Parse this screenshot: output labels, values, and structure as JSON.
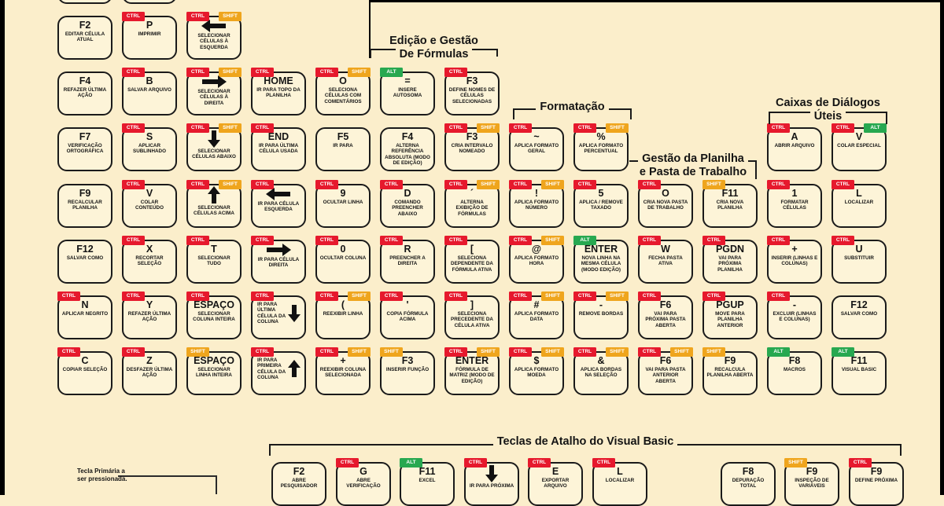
{
  "page": {
    "background": "#fbeecb",
    "key_fill": "#fdf4d8",
    "frame_color": "#000000"
  },
  "badges": {
    "ctrl": {
      "label": "CTRL",
      "color": "#e6192d"
    },
    "shift": {
      "label": "SHIFT",
      "color": "#efa51d"
    },
    "alt": {
      "label": "ALT",
      "color": "#27a850"
    }
  },
  "section_headers": [
    {
      "id": "edicao",
      "lines": [
        "Edição e Gestão",
        "De Fórmulas"
      ]
    },
    {
      "id": "formatacao",
      "lines": [
        "Formatação"
      ]
    },
    {
      "id": "gestao",
      "lines": [
        "Gestão da Planilha",
        "e Pasta de Trabalho"
      ]
    },
    {
      "id": "caixas",
      "lines": [
        "Caixas de Diálogos",
        "Úteis"
      ]
    },
    {
      "id": "vb",
      "lines": [
        "Teclas de Atalho do Visual Basic"
      ]
    }
  ],
  "legend": {
    "line1": "Tecla Primária a",
    "line2": "ser pressionada."
  },
  "keys": [
    {
      "grid": "main",
      "col": 1,
      "row": 0,
      "label": "",
      "desc": "",
      "mods": [],
      "partial": true
    },
    {
      "grid": "main",
      "col": 2,
      "row": 0,
      "label": "",
      "desc": "",
      "mods": [],
      "partial": true
    },
    {
      "grid": "main",
      "col": 1,
      "row": 1,
      "label": "F2",
      "desc": "EDITAR CÉLULA ATUAL",
      "mods": []
    },
    {
      "grid": "main",
      "col": 2,
      "row": 1,
      "label": "P",
      "desc": "IMPRIMIR",
      "mods": [
        "ctrl"
      ]
    },
    {
      "grid": "main",
      "col": 3,
      "row": 1,
      "label": "←",
      "desc": "SELECIONAR CÉLULAS À ESQUERDA",
      "mods": [
        "ctrl",
        "shift"
      ],
      "layout": "arrow-top"
    },
    {
      "grid": "main",
      "col": 1,
      "row": 2,
      "label": "F4",
      "desc": "REFAZER ÚLTIMA AÇÃO",
      "mods": []
    },
    {
      "grid": "main",
      "col": 2,
      "row": 2,
      "label": "B",
      "desc": "SALVAR ARQUIVO",
      "mods": [
        "ctrl"
      ]
    },
    {
      "grid": "main",
      "col": 3,
      "row": 2,
      "label": "→",
      "desc": "SELECIONAR CÉLULAS À DIREITA",
      "mods": [
        "ctrl",
        "shift"
      ],
      "layout": "arrow-top"
    },
    {
      "grid": "main",
      "col": 4,
      "row": 2,
      "label": "HOME",
      "desc": "IR PARA TOPO DA PLANILHA",
      "mods": [
        "ctrl"
      ]
    },
    {
      "grid": "main",
      "col": 5,
      "row": 2,
      "label": "O",
      "desc": "SELECIONA CÉLULAS COM COMENTÁRIOS",
      "mods": [
        "ctrl",
        "shift"
      ]
    },
    {
      "grid": "main",
      "col": 6,
      "row": 2,
      "label": "=",
      "desc": "INSERE AUTOSOMA",
      "mods": [
        "alt"
      ]
    },
    {
      "grid": "main",
      "col": 7,
      "row": 2,
      "label": "F3",
      "desc": "DEFINE NOMES DE CÉLULAS SELECIONADAS",
      "mods": [
        "ctrl"
      ]
    },
    {
      "grid": "main",
      "col": 1,
      "row": 3,
      "label": "F7",
      "desc": "VERIFICAÇÃO ORTOGRÁFICA",
      "mods": []
    },
    {
      "grid": "main",
      "col": 2,
      "row": 3,
      "label": "S",
      "desc": "APLICAR SUBLINHADO",
      "mods": [
        "ctrl"
      ]
    },
    {
      "grid": "main",
      "col": 3,
      "row": 3,
      "label": "↓",
      "desc": "SELECIONAR CÉLULAS ABAIXO",
      "mods": [
        "ctrl",
        "shift"
      ],
      "layout": "arrow-top"
    },
    {
      "grid": "main",
      "col": 4,
      "row": 3,
      "label": "END",
      "desc": "IR PARA ÚLTIMA CÉLULA USADA",
      "mods": [
        "ctrl"
      ]
    },
    {
      "grid": "main",
      "col": 5,
      "row": 3,
      "label": "F5",
      "desc": "IR PARA",
      "mods": []
    },
    {
      "grid": "main",
      "col": 6,
      "row": 3,
      "label": "F4",
      "desc": "ALTERNA REFERÊNCIA ABSOLUTA (MODO DE EDIÇÃO)",
      "mods": []
    },
    {
      "grid": "main",
      "col": 7,
      "row": 3,
      "label": "F3",
      "desc": "CRIA INTERVALO NOMEADO",
      "mods": [
        "ctrl",
        "shift"
      ]
    },
    {
      "grid": "main",
      "col": 8,
      "row": 3,
      "label": "~",
      "desc": "APLICA FORMATO GERAL",
      "mods": [
        "ctrl"
      ]
    },
    {
      "grid": "main",
      "col": 9,
      "row": 3,
      "label": "%",
      "desc": "APLICA FORMATO PERCENTUAL",
      "mods": [
        "ctrl",
        "shift"
      ]
    },
    {
      "grid": "main",
      "col": 12,
      "row": 3,
      "label": "A",
      "desc": "ABRIR ARQUIVO",
      "mods": [
        "ctrl"
      ]
    },
    {
      "grid": "main",
      "col": 13,
      "row": 3,
      "label": "V",
      "desc": "COLAR ESPECIAL",
      "mods": [
        "ctrl",
        "alt"
      ]
    },
    {
      "grid": "main",
      "col": 1,
      "row": 4,
      "label": "F9",
      "desc": "RECALCULAR PLANILHA",
      "mods": []
    },
    {
      "grid": "main",
      "col": 2,
      "row": 4,
      "label": "V",
      "desc": "COLAR CONTEÚDO",
      "mods": [
        "ctrl"
      ]
    },
    {
      "grid": "main",
      "col": 3,
      "row": 4,
      "label": "↑",
      "desc": "SELECIONAR CÉLULAS ACIMA",
      "mods": [
        "ctrl",
        "shift"
      ],
      "layout": "arrow-top"
    },
    {
      "grid": "main",
      "col": 4,
      "row": 4,
      "label": "←",
      "desc": "IR PARA CÉLULA ESQUERDA",
      "mods": [
        "ctrl"
      ],
      "layout": "arrow-top"
    },
    {
      "grid": "main",
      "col": 5,
      "row": 4,
      "label": "9",
      "desc": "OCULTAR LINHA",
      "mods": [
        "ctrl"
      ]
    },
    {
      "grid": "main",
      "col": 6,
      "row": 4,
      "label": "D",
      "desc": "COMANDO PREENCHER ABAIXO",
      "mods": [
        "ctrl"
      ]
    },
    {
      "grid": "main",
      "col": 7,
      "row": 4,
      "label": "´",
      "desc": "ALTERNA EXIBIÇÃO DE FÓRMULAS",
      "mods": [
        "ctrl",
        "shift"
      ]
    },
    {
      "grid": "main",
      "col": 8,
      "row": 4,
      "label": "!",
      "desc": "APLICA FORMATO NÚMERO",
      "mods": [
        "ctrl",
        "shift"
      ]
    },
    {
      "grid": "main",
      "col": 9,
      "row": 4,
      "label": "5",
      "desc": "APLICA / REMOVE TAXADO",
      "mods": [
        "ctrl"
      ]
    },
    {
      "grid": "main",
      "col": 10,
      "row": 4,
      "label": "O",
      "desc": "CRIA NOVA PASTA DE TRABALHO",
      "mods": [
        "ctrl"
      ]
    },
    {
      "grid": "main",
      "col": 11,
      "row": 4,
      "label": "F11",
      "desc": "CRIA NOVA PLANILHA",
      "mods": [
        "shift"
      ]
    },
    {
      "grid": "main",
      "col": 12,
      "row": 4,
      "label": "1",
      "desc": "FORMATAR CÉLULAS",
      "mods": [
        "ctrl"
      ]
    },
    {
      "grid": "main",
      "col": 13,
      "row": 4,
      "label": "L",
      "desc": "LOCALIZAR",
      "mods": [
        "ctrl"
      ]
    },
    {
      "grid": "main",
      "col": 1,
      "row": 5,
      "label": "F12",
      "desc": "SALVAR COMO",
      "mods": []
    },
    {
      "grid": "main",
      "col": 2,
      "row": 5,
      "label": "X",
      "desc": "RECORTAR SELEÇÃO",
      "mods": [
        "ctrl"
      ]
    },
    {
      "grid": "main",
      "col": 3,
      "row": 5,
      "label": "T",
      "desc": "SELECIONAR TUDO",
      "mods": [
        "ctrl"
      ]
    },
    {
      "grid": "main",
      "col": 4,
      "row": 5,
      "label": "→",
      "desc": "IR PARA CÉLULA DIREITA",
      "mods": [
        "ctrl"
      ],
      "layout": "arrow-top"
    },
    {
      "grid": "main",
      "col": 5,
      "row": 5,
      "label": "0",
      "desc": "OCULTAR COLUNA",
      "mods": [
        "ctrl"
      ]
    },
    {
      "grid": "main",
      "col": 6,
      "row": 5,
      "label": "R",
      "desc": "PREENCHER A DIREITA",
      "mods": [
        "ctrl"
      ]
    },
    {
      "grid": "main",
      "col": 7,
      "row": 5,
      "label": "[",
      "desc": "SELECIONA DEPENDENTE DA FÓRMULA ATIVA",
      "mods": [
        "ctrl"
      ]
    },
    {
      "grid": "main",
      "col": 8,
      "row": 5,
      "label": "@",
      "desc": "APLICA FORMATO HORA",
      "mods": [
        "ctrl",
        "shift"
      ]
    },
    {
      "grid": "main",
      "col": 9,
      "row": 5,
      "label": "ENTER",
      "desc": "NOVA LINHA NA MESMA CÉLULA (MODO EDIÇÃO)",
      "mods": [
        "alt"
      ]
    },
    {
      "grid": "main",
      "col": 10,
      "row": 5,
      "label": "W",
      "desc": "FECHA PASTA ATIVA",
      "mods": [
        "ctrl"
      ]
    },
    {
      "grid": "main",
      "col": 11,
      "row": 5,
      "label": "PGDN",
      "desc": "VAI PARA PRÓXIMA PLANILHA",
      "mods": [
        "ctrl"
      ]
    },
    {
      "grid": "main",
      "col": 12,
      "row": 5,
      "label": "+",
      "desc": "INSERIR (LINHAS E COLUNAS)",
      "mods": [
        "ctrl"
      ]
    },
    {
      "grid": "main",
      "col": 13,
      "row": 5,
      "label": "U",
      "desc": "SUBSTITUIR",
      "mods": [
        "ctrl"
      ]
    },
    {
      "grid": "main",
      "col": 1,
      "row": 6,
      "label": "N",
      "desc": "APLICAR NEGRITO",
      "mods": [
        "ctrl"
      ]
    },
    {
      "grid": "main",
      "col": 2,
      "row": 6,
      "label": "Y",
      "desc": "REFAZER ÚLTIMA AÇÃO",
      "mods": [
        "ctrl"
      ]
    },
    {
      "grid": "main",
      "col": 3,
      "row": 6,
      "label": "ESPAÇO",
      "desc": "SELECIONAR COLUNA INTEIRA",
      "mods": [
        "ctrl"
      ]
    },
    {
      "grid": "main",
      "col": 4,
      "row": 6,
      "label": "↓",
      "desc": "IR PARA ÚLTIMA CÉLULA DA COLUNA",
      "mods": [
        "ctrl"
      ],
      "layout": "arrow-right"
    },
    {
      "grid": "main",
      "col": 5,
      "row": 6,
      "label": "(",
      "desc": "REEXIBIR LINHA",
      "mods": [
        "ctrl",
        "shift"
      ]
    },
    {
      "grid": "main",
      "col": 6,
      "row": 6,
      "label": "'",
      "desc": "COPIA FÓRMULA ACIMA",
      "mods": [
        "ctrl"
      ]
    },
    {
      "grid": "main",
      "col": 7,
      "row": 6,
      "label": "]",
      "desc": "SELECIONA PRECEDENTE DA CÉLULA ATIVA",
      "mods": [
        "ctrl"
      ]
    },
    {
      "grid": "main",
      "col": 8,
      "row": 6,
      "label": "#",
      "desc": "APLICA FORMATO DATA",
      "mods": [
        "ctrl",
        "shift"
      ]
    },
    {
      "grid": "main",
      "col": 9,
      "row": 6,
      "label": "-",
      "desc": "REMOVE BORDAS",
      "mods": [
        "ctrl",
        "shift"
      ]
    },
    {
      "grid": "main",
      "col": 10,
      "row": 6,
      "label": "F6",
      "desc": "VAI PARA PRÓXIMA PASTA ABERTA",
      "mods": [
        "ctrl"
      ]
    },
    {
      "grid": "main",
      "col": 11,
      "row": 6,
      "label": "PGUP",
      "desc": "MOVE PARA PLANILHA ANTERIOR",
      "mods": [
        "ctrl"
      ]
    },
    {
      "grid": "main",
      "col": 12,
      "row": 6,
      "label": "-",
      "desc": "EXCLUIR (LINHAS E COLUNAS)",
      "mods": [
        "ctrl"
      ]
    },
    {
      "grid": "main",
      "col": 13,
      "row": 6,
      "label": "F12",
      "desc": "SALVAR COMO",
      "mods": []
    },
    {
      "grid": "main",
      "col": 1,
      "row": 7,
      "label": "C",
      "desc": "COPIAR SELEÇÃO",
      "mods": [
        "ctrl"
      ]
    },
    {
      "grid": "main",
      "col": 2,
      "row": 7,
      "label": "Z",
      "desc": "DESFAZER ÚLTIMA AÇÃO",
      "mods": [
        "ctrl"
      ]
    },
    {
      "grid": "main",
      "col": 3,
      "row": 7,
      "label": "ESPAÇO",
      "desc": "SELECIONAR LINHA INTEIRA",
      "mods": [
        "shift"
      ]
    },
    {
      "grid": "main",
      "col": 4,
      "row": 7,
      "label": "↑",
      "desc": "IR PARA PRIMEIRA CÉLULA DA COLUNA",
      "mods": [
        "ctrl"
      ],
      "layout": "arrow-right"
    },
    {
      "grid": "main",
      "col": 5,
      "row": 7,
      "label": "+",
      "desc": "REEXIBIR COLUNA SELECIONADA",
      "mods": [
        "ctrl",
        "shift"
      ]
    },
    {
      "grid": "main",
      "col": 6,
      "row": 7,
      "label": "F3",
      "desc": "INSERIR FUNÇÃO",
      "mods": [
        "shift"
      ]
    },
    {
      "grid": "main",
      "col": 7,
      "row": 7,
      "label": "ENTER",
      "desc": "FÓRMULA DE MATRIZ (MODO DE EDIÇÃO)",
      "mods": [
        "ctrl",
        "shift"
      ]
    },
    {
      "grid": "main",
      "col": 8,
      "row": 7,
      "label": "$",
      "desc": "APLICA FORMATO MOEDA",
      "mods": [
        "ctrl",
        "shift"
      ]
    },
    {
      "grid": "main",
      "col": 9,
      "row": 7,
      "label": "&",
      "desc": "APLICA BORDAS NA SELEÇÃO",
      "mods": [
        "ctrl",
        "shift"
      ]
    },
    {
      "grid": "main",
      "col": 10,
      "row": 7,
      "label": "F6",
      "desc": "VAI PARA PASTA ANTERIOR ABERTA",
      "mods": [
        "ctrl",
        "shift"
      ]
    },
    {
      "grid": "main",
      "col": 11,
      "row": 7,
      "label": "F9",
      "desc": "RECALCULA PLANILHA ABERTA",
      "mods": [
        "shift"
      ]
    },
    {
      "grid": "main",
      "col": 12,
      "row": 7,
      "label": "F8",
      "desc": "MACROS",
      "mods": [
        "alt"
      ]
    },
    {
      "grid": "main",
      "col": 13,
      "row": 7,
      "label": "F11",
      "desc": "VISUAL BASIC",
      "mods": [
        "alt"
      ]
    },
    {
      "grid": "vb",
      "slot": 0,
      "label": "F2",
      "desc": "ABRE PESQUISADOR",
      "mods": []
    },
    {
      "grid": "vb",
      "slot": 1,
      "label": "G",
      "desc": "ABRE VERIFICAÇÃO",
      "mods": [
        "ctrl"
      ]
    },
    {
      "grid": "vb",
      "slot": 2,
      "label": "F11",
      "desc": "EXCEL",
      "mods": [
        "alt"
      ]
    },
    {
      "grid": "vb",
      "slot": 3,
      "label": "↓",
      "desc": "IR PARA PRÓXIMA",
      "mods": [
        "ctrl"
      ],
      "layout": "arrow-top"
    },
    {
      "grid": "vb",
      "slot": 4,
      "label": "E",
      "desc": "EXPORTAR ARQUIVO",
      "mods": [
        "ctrl"
      ]
    },
    {
      "grid": "vb",
      "slot": 5,
      "label": "L",
      "desc": "LOCALIZAR",
      "mods": [
        "ctrl"
      ]
    },
    {
      "grid": "vb",
      "slot": 7,
      "label": "F8",
      "desc": "DEPURAÇÃO TOTAL",
      "mods": []
    },
    {
      "grid": "vb",
      "slot": 8,
      "label": "F9",
      "desc": "INSPEÇÃO DE VARIÁVEIS",
      "mods": [
        "shift"
      ]
    },
    {
      "grid": "vb",
      "slot": 9,
      "label": "F9",
      "desc": "DEFINE PRÓXIMA",
      "mods": [
        "ctrl"
      ]
    }
  ]
}
